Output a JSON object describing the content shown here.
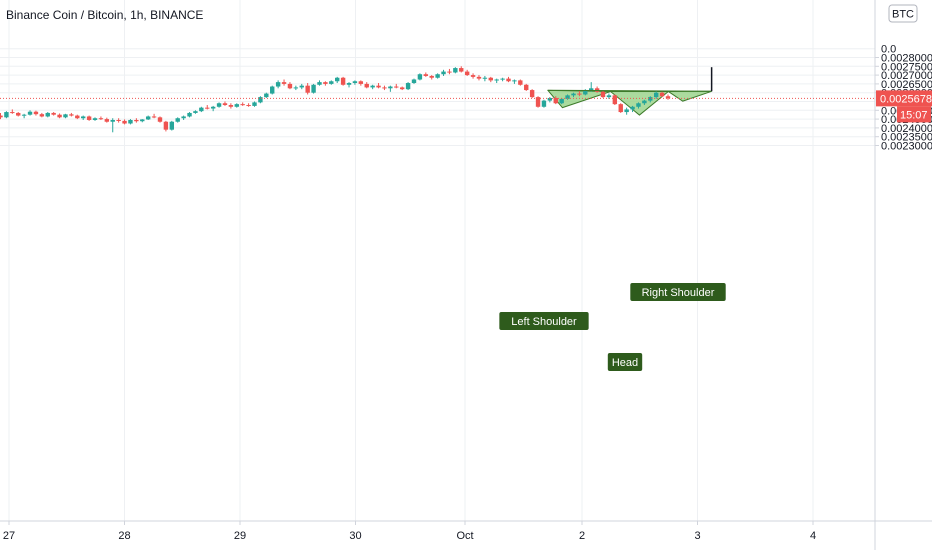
{
  "header": {
    "title": "Binance Coin / Bitcoin, 1h, BINANCE"
  },
  "currency_badge": "BTC",
  "current_price": {
    "value": "0.0025678",
    "countdown": "15:07"
  },
  "colors": {
    "up": "#26a69a",
    "down": "#ef5350",
    "pattern_fill": "#8fcf7e",
    "label_bg": "#2e5b1c",
    "price_line": "#ef5350"
  },
  "chart_data": {
    "type": "candlestick",
    "x_ticks": [
      "27",
      "28",
      "29",
      "30",
      "Oct",
      "2",
      "3",
      "4"
    ],
    "y_ticks": [
      "0.0028000",
      "0.0027500",
      "0.0027000",
      "0.0026500",
      "0.0026000",
      "0.0025000",
      "0.0024500",
      "0.0024000",
      "0.0023500",
      "0.0023000"
    ],
    "ylim": [
      0.00228,
      0.00286
    ],
    "annotations": [
      {
        "label": "Left Shoulder"
      },
      {
        "label": "Head"
      },
      {
        "label": "Right Shoulder"
      }
    ],
    "pattern_points": [
      {
        "t": "2019-10-01T16:00",
        "price": 0.002613
      },
      {
        "t": "2019-10-01T19:00",
        "price": 0.002515
      },
      {
        "t": "2019-10-02T05:00",
        "price": 0.002607
      },
      {
        "t": "2019-10-02T11:00",
        "price": 0.002473
      },
      {
        "t": "2019-10-02T17:00",
        "price": 0.002607
      },
      {
        "t": "2019-10-02T20:00",
        "price": 0.002552
      },
      {
        "t": "2019-10-03T02:00",
        "price": 0.002608
      }
    ],
    "neckline": [
      {
        "t": "2019-10-01T16:00",
        "price": 0.002614
      },
      {
        "t": "2019-10-03T02:00",
        "price": 0.002608
      }
    ],
    "target_line": [
      {
        "t": "2019-10-03T02:00",
        "price": 0.002608
      },
      {
        "t": "2019-10-03T02:00",
        "price": 0.002745
      }
    ],
    "candles": [
      [
        0.00247,
        0.002485,
        0.00245,
        0.00246
      ],
      [
        0.00246,
        0.002495,
        0.002455,
        0.00249
      ],
      [
        0.00249,
        0.002505,
        0.00248,
        0.002485
      ],
      [
        0.002485,
        0.00249,
        0.002465,
        0.00247
      ],
      [
        0.00247,
        0.00248,
        0.002455,
        0.002475
      ],
      [
        0.002475,
        0.0025,
        0.00247,
        0.002492
      ],
      [
        0.002492,
        0.002498,
        0.00247,
        0.002478
      ],
      [
        0.002478,
        0.002485,
        0.00246,
        0.002465
      ],
      [
        0.002465,
        0.00249,
        0.00246,
        0.002485
      ],
      [
        0.002485,
        0.00249,
        0.00247,
        0.002475
      ],
      [
        0.002475,
        0.002482,
        0.002455,
        0.00246
      ],
      [
        0.00246,
        0.00248,
        0.002455,
        0.002477
      ],
      [
        0.002477,
        0.002485,
        0.002465,
        0.00247
      ],
      [
        0.00247,
        0.002475,
        0.00245,
        0.002455
      ],
      [
        0.002455,
        0.00247,
        0.002445,
        0.002465
      ],
      [
        0.002465,
        0.00247,
        0.00244,
        0.002445
      ],
      [
        0.002445,
        0.00246,
        0.00244,
        0.002455
      ],
      [
        0.002455,
        0.002465,
        0.002445,
        0.00245
      ],
      [
        0.00245,
        0.002458,
        0.00243,
        0.002435
      ],
      [
        0.002435,
        0.002455,
        0.002375,
        0.002445
      ],
      [
        0.002445,
        0.002455,
        0.00243,
        0.00244
      ],
      [
        0.00244,
        0.002448,
        0.00242,
        0.002425
      ],
      [
        0.002425,
        0.00245,
        0.00242,
        0.002445
      ],
      [
        0.002445,
        0.002455,
        0.00243,
        0.002438
      ],
      [
        0.002438,
        0.00245,
        0.002432,
        0.002448
      ],
      [
        0.002448,
        0.00247,
        0.002445,
        0.002465
      ],
      [
        0.002465,
        0.00248,
        0.002455,
        0.00246
      ],
      [
        0.00246,
        0.002465,
        0.00243,
        0.002435
      ],
      [
        0.002435,
        0.00244,
        0.00238,
        0.00239
      ],
      [
        0.00239,
        0.00244,
        0.002385,
        0.002435
      ],
      [
        0.002435,
        0.00246,
        0.00243,
        0.002455
      ],
      [
        0.002455,
        0.00247,
        0.002445,
        0.002465
      ],
      [
        0.002465,
        0.00249,
        0.00246,
        0.002485
      ],
      [
        0.002485,
        0.0025,
        0.00248,
        0.002495
      ],
      [
        0.002495,
        0.00252,
        0.00249,
        0.002515
      ],
      [
        0.002515,
        0.00253,
        0.002505,
        0.00251
      ],
      [
        0.00251,
        0.002525,
        0.002495,
        0.00252
      ],
      [
        0.00252,
        0.002545,
        0.002515,
        0.00254
      ],
      [
        0.00254,
        0.00255,
        0.002525,
        0.00253
      ],
      [
        0.00253,
        0.00254,
        0.00251,
        0.00252
      ],
      [
        0.00252,
        0.00254,
        0.002515,
        0.002535
      ],
      [
        0.002535,
        0.002545,
        0.002525,
        0.00253
      ],
      [
        0.00253,
        0.00254,
        0.00252,
        0.002525
      ],
      [
        0.002525,
        0.00255,
        0.00252,
        0.002545
      ],
      [
        0.002545,
        0.00258,
        0.00254,
        0.002575
      ],
      [
        0.002575,
        0.0026,
        0.00257,
        0.002595
      ],
      [
        0.002595,
        0.00264,
        0.00259,
        0.002635
      ],
      [
        0.002635,
        0.00267,
        0.002625,
        0.00266
      ],
      [
        0.00266,
        0.002675,
        0.00264,
        0.00265
      ],
      [
        0.00265,
        0.00266,
        0.00262,
        0.002625
      ],
      [
        0.002625,
        0.00264,
        0.002615,
        0.00263
      ],
      [
        0.00263,
        0.00265,
        0.00262,
        0.00264
      ],
      [
        0.00264,
        0.002655,
        0.00259,
        0.0026
      ],
      [
        0.0026,
        0.00265,
        0.002595,
        0.002645
      ],
      [
        0.002645,
        0.00267,
        0.00264,
        0.00266
      ],
      [
        0.00266,
        0.002665,
        0.00264,
        0.00265
      ],
      [
        0.00265,
        0.00267,
        0.002645,
        0.002665
      ],
      [
        0.002665,
        0.00269,
        0.002655,
        0.002685
      ],
      [
        0.002685,
        0.00269,
        0.00264,
        0.002645
      ],
      [
        0.002645,
        0.00266,
        0.00263,
        0.002655
      ],
      [
        0.002655,
        0.00267,
        0.002645,
        0.002665
      ],
      [
        0.002665,
        0.00267,
        0.00264,
        0.00265
      ],
      [
        0.00265,
        0.00266,
        0.002625,
        0.00263
      ],
      [
        0.00263,
        0.002645,
        0.00262,
        0.00264
      ],
      [
        0.00264,
        0.002655,
        0.002625,
        0.00263
      ],
      [
        0.00263,
        0.00264,
        0.002615,
        0.002625
      ],
      [
        0.002625,
        0.00264,
        0.002605,
        0.002635
      ],
      [
        0.002635,
        0.00265,
        0.002625,
        0.00263
      ],
      [
        0.00263,
        0.002635,
        0.002615,
        0.00262
      ],
      [
        0.00262,
        0.00266,
        0.002615,
        0.002655
      ],
      [
        0.002655,
        0.00268,
        0.00265,
        0.002675
      ],
      [
        0.002675,
        0.00271,
        0.00267,
        0.002705
      ],
      [
        0.002705,
        0.002715,
        0.00269,
        0.002695
      ],
      [
        0.002695,
        0.0027,
        0.002675,
        0.002685
      ],
      [
        0.002685,
        0.00271,
        0.00268,
        0.002705
      ],
      [
        0.002705,
        0.00273,
        0.002695,
        0.00272
      ],
      [
        0.00272,
        0.002735,
        0.002705,
        0.002715
      ],
      [
        0.002715,
        0.002745,
        0.00271,
        0.00274
      ],
      [
        0.00274,
        0.00275,
        0.002715,
        0.00272
      ],
      [
        0.00272,
        0.00273,
        0.002695,
        0.0027
      ],
      [
        0.0027,
        0.00271,
        0.00268,
        0.00269
      ],
      [
        0.00269,
        0.0027,
        0.00267,
        0.00268
      ],
      [
        0.00268,
        0.002695,
        0.002665,
        0.002685
      ],
      [
        0.002685,
        0.00269,
        0.00266,
        0.00267
      ],
      [
        0.00267,
        0.00268,
        0.002655,
        0.002675
      ],
      [
        0.002675,
        0.002685,
        0.002665,
        0.00268
      ],
      [
        0.00268,
        0.00269,
        0.00266,
        0.002665
      ],
      [
        0.002665,
        0.002675,
        0.00265,
        0.00267
      ],
      [
        0.00267,
        0.002675,
        0.00264,
        0.002645
      ],
      [
        0.002645,
        0.00265,
        0.00261,
        0.002615
      ],
      [
        0.002615,
        0.00262,
        0.00257,
        0.002575
      ],
      [
        0.002575,
        0.00258,
        0.002515,
        0.00252
      ],
      [
        0.00252,
        0.00256,
        0.002515,
        0.002555
      ],
      [
        0.002555,
        0.002575,
        0.002545,
        0.00257
      ],
      [
        0.00257,
        0.00258,
        0.002535,
        0.00254
      ],
      [
        0.00254,
        0.00257,
        0.002535,
        0.002565
      ],
      [
        0.002565,
        0.00259,
        0.00256,
        0.002585
      ],
      [
        0.002585,
        0.0026,
        0.002575,
        0.002595
      ],
      [
        0.002595,
        0.00261,
        0.00258,
        0.00259
      ],
      [
        0.00259,
        0.00262,
        0.002585,
        0.002615
      ],
      [
        0.002615,
        0.00266,
        0.002605,
        0.002625
      ],
      [
        0.002625,
        0.002635,
        0.0026,
        0.002605
      ],
      [
        0.002605,
        0.00261,
        0.00257,
        0.002575
      ],
      [
        0.002575,
        0.002595,
        0.002565,
        0.002585
      ],
      [
        0.002585,
        0.00259,
        0.00253,
        0.002535
      ],
      [
        0.002535,
        0.00254,
        0.002485,
        0.00249
      ],
      [
        0.00249,
        0.002515,
        0.002475,
        0.002505
      ],
      [
        0.002505,
        0.002525,
        0.00249,
        0.00252
      ],
      [
        0.00252,
        0.002545,
        0.00251,
        0.00254
      ],
      [
        0.00254,
        0.00256,
        0.00253,
        0.002555
      ],
      [
        0.002555,
        0.00258,
        0.002545,
        0.002575
      ],
      [
        0.002575,
        0.00261,
        0.002565,
        0.0026
      ],
      [
        0.0026,
        0.002605,
        0.002575,
        0.00258
      ],
      [
        0.00258,
        0.00259,
        0.00256,
        0.002568
      ]
    ]
  }
}
